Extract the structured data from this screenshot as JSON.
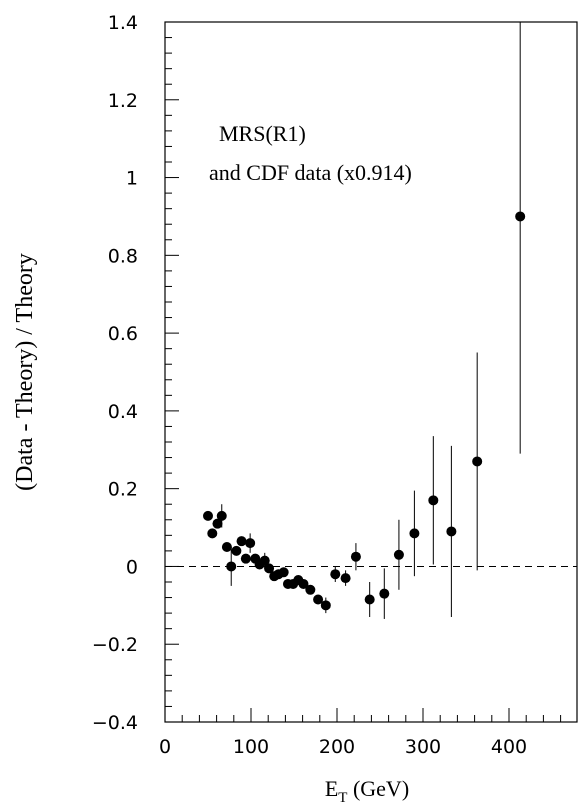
{
  "chart_data": {
    "type": "scatter",
    "title": "",
    "annotation_lines": [
      "MRS(R1)",
      "and CDF data (x0.914)"
    ],
    "xlabel": "E",
    "xlabel_subscript": "T",
    "xlabel_unit": " (GeV)",
    "ylabel": "(Data - Theory) / Theory",
    "xlim": [
      0,
      460
    ],
    "ylim": [
      -0.4,
      1.4
    ],
    "x_ticks": [
      0,
      100,
      200,
      300,
      400
    ],
    "x_tick_labels": [
      "0",
      "100",
      "200",
      "300",
      "400"
    ],
    "y_ticks": [
      -0.4,
      -0.2,
      0,
      0.2,
      0.4,
      0.6,
      0.8,
      1,
      1.2,
      1.4
    ],
    "y_tick_labels": [
      "−0.4",
      "−0.2",
      "0",
      "0.2",
      "0.4",
      "0.6",
      "0.8",
      "1",
      "1.2",
      "1.4"
    ],
    "reference_line_y": 0,
    "reference_line_style": "dashed",
    "grid": false,
    "marker": "filled-circle",
    "series": [
      {
        "points": [
          {
            "x": 50,
            "y": 0.13,
            "err": 0.01
          },
          {
            "x": 55,
            "y": 0.085,
            "err": 0.01
          },
          {
            "x": 61,
            "y": 0.11,
            "err": 0.01
          },
          {
            "x": 66,
            "y": 0.13,
            "err": 0.03
          },
          {
            "x": 72,
            "y": 0.05,
            "err": 0.01
          },
          {
            "x": 77,
            "y": 0.0,
            "err": 0.05
          },
          {
            "x": 83,
            "y": 0.04,
            "err": 0.01
          },
          {
            "x": 89,
            "y": 0.065,
            "err": 0.01
          },
          {
            "x": 94,
            "y": 0.02,
            "err": 0.01
          },
          {
            "x": 99,
            "y": 0.06,
            "err": 0.025
          },
          {
            "x": 105,
            "y": 0.02,
            "err": 0.01
          },
          {
            "x": 110,
            "y": 0.005,
            "err": 0.01
          },
          {
            "x": 116,
            "y": 0.015,
            "err": 0.02
          },
          {
            "x": 121,
            "y": -0.005,
            "err": 0.01
          },
          {
            "x": 127,
            "y": -0.025,
            "err": 0.01
          },
          {
            "x": 132,
            "y": -0.02,
            "err": 0.01
          },
          {
            "x": 138,
            "y": -0.015,
            "err": 0.01
          },
          {
            "x": 143,
            "y": -0.045,
            "err": 0.01
          },
          {
            "x": 149,
            "y": -0.045,
            "err": 0.01
          },
          {
            "x": 155,
            "y": -0.035,
            "err": 0.01
          },
          {
            "x": 161,
            "y": -0.045,
            "err": 0.01
          },
          {
            "x": 169,
            "y": -0.06,
            "err": 0.01
          },
          {
            "x": 178,
            "y": -0.085,
            "err": 0.01
          },
          {
            "x": 187,
            "y": -0.1,
            "err": 0.02
          },
          {
            "x": 198,
            "y": -0.02,
            "err": 0.02
          },
          {
            "x": 210,
            "y": -0.03,
            "err": 0.02
          },
          {
            "x": 222,
            "y": 0.025,
            "err": 0.035
          },
          {
            "x": 238,
            "y": -0.085,
            "err": 0.045
          },
          {
            "x": 255,
            "y": -0.07,
            "err": 0.065
          },
          {
            "x": 272,
            "y": 0.03,
            "err": 0.09
          },
          {
            "x": 290,
            "y": 0.085,
            "err": 0.11
          },
          {
            "x": 312,
            "y": 0.17,
            "err": 0.165
          },
          {
            "x": 333,
            "y": 0.09,
            "err": 0.22
          },
          {
            "x": 363,
            "y": 0.27,
            "err": 0.28
          },
          {
            "x": 413,
            "y": 0.9,
            "err": 0.61
          }
        ]
      }
    ]
  }
}
